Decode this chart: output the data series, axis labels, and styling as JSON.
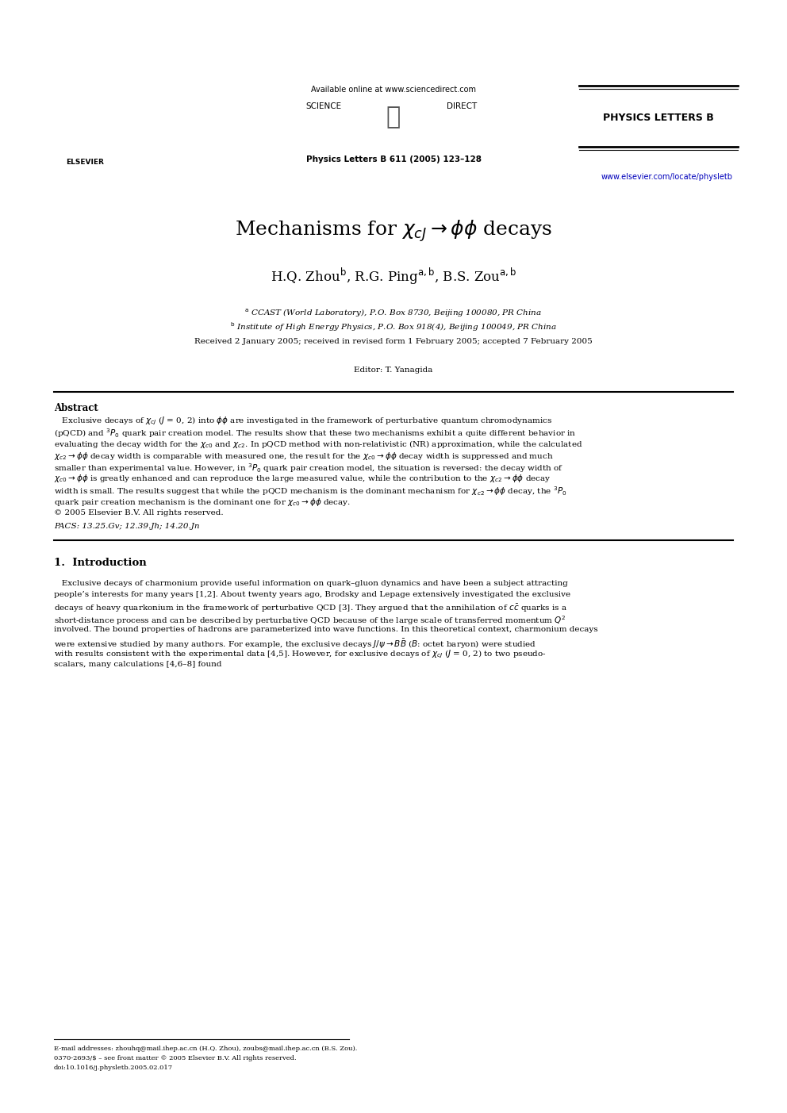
{
  "bg_color": "#ffffff",
  "page_width": 9.92,
  "page_height": 14.03,
  "header": {
    "available_online": "Available online at www.sciencedirect.com",
    "journal": "PHYSICS LETTERS B",
    "journal_info": "Physics Letters B 611 (2005) 123–128",
    "url": "www.elsevier.com/locate/physletb"
  },
  "title_latex": "Mechanisms for $\\chi_{cJ} \\rightarrow \\phi\\phi$ decays",
  "authors_latex": "H.Q. Zhou$^{\\mathrm{b}}$, R.G. Ping$^{\\mathrm{a,b}}$, B.S. Zou$^{\\mathrm{a,b}}$",
  "affil_a": "$^{\\mathrm{a}}$ CCAST (World Laboratory), P.O. Box 8730, Beijing 100080, PR China",
  "affil_b": "$^{\\mathrm{b}}$ Institute of High Energy Physics, P.O. Box 918(4), Beijing 100049, PR China",
  "received": "Received 2 January 2005; received in revised form 1 February 2005; accepted 7 February 2005",
  "editor": "Editor: T. Yanagida",
  "abstract_title": "Abstract",
  "abstract_line1": "   Exclusive decays of $\\chi_{cJ}$ ($J$ = 0, 2) into $\\phi\\phi$ are investigated in the framework of perturbative quantum chromodynamics",
  "abstract_line2": "(pQCD) and $^{3}P_{0}$ quark pair creation model. The results show that these two mechanisms exhibit a quite different behavior in",
  "abstract_line3": "evaluating the decay width for the $\\chi_{c0}$ and $\\chi_{c2}$. In pQCD method with non-relativistic (NR) approximation, while the calculated",
  "abstract_line4": "$\\chi_{c2} \\rightarrow \\phi\\phi$ decay width is comparable with measured one, the result for the $\\chi_{c0} \\rightarrow \\phi\\phi$ decay width is suppressed and much",
  "abstract_line5": "smaller than experimental value. However, in $^{3}P_{0}$ quark pair creation model, the situation is reversed: the decay width of",
  "abstract_line6": "$\\chi_{c0} \\rightarrow \\phi\\phi$ is greatly enhanced and can reproduce the large measured value, while the contribution to the $\\chi_{c2} \\rightarrow \\phi\\phi$ decay",
  "abstract_line7": "width is small. The results suggest that while the pQCD mechanism is the dominant mechanism for $\\chi_{c2} \\rightarrow \\phi\\phi$ decay, the $^{3}P_{0}$",
  "abstract_line8": "quark pair creation mechanism is the dominant one for $\\chi_{c0} \\rightarrow \\phi\\phi$ decay.",
  "copyright": "© 2005 Elsevier B.V. All rights reserved.",
  "pacs": "PACS: 13.25.Gv; 12.39.Jh; 14.20.Jn",
  "section1_title": "1.  Introduction",
  "intro_line1": "   Exclusive decays of charmonium provide useful information on quark–gluon dynamics and have been a subject attracting",
  "intro_line2": "people’s interests for many years [1,2]. About twenty years ago, Brodsky and Lepage extensively investigated the exclusive",
  "intro_line3": "decays of heavy quarkonium in the framework of perturbative QCD [3]. They argued that the annihilation of $c\\bar{c}$ quarks is a",
  "intro_line4": "short-distance process and can be described by perturbative QCD because of the large scale of transferred momentum $Q^{2}$",
  "intro_line5": "involved. The bound properties of hadrons are parameterized into wave functions. In this theoretical context, charmonium decays",
  "intro_line6": "were extensive studied by many authors. For example, the exclusive decays $J/\\psi \\rightarrow B\\bar{B}$ ($B$: octet baryon) were studied",
  "intro_line7": "with results consistent with the experimental data [4,5]. However, for exclusive decays of $\\chi_{cJ}$ ($J$ = 0, 2) to two pseudo-",
  "intro_line8": "scalars, many calculations [4,6–8] found",
  "footnote_email": "E-mail addresses: zhouhq@mail.ihep.ac.cn (H.Q. Zhou), zoubs@mail.ihep.ac.cn (B.S. Zou).",
  "footnote_issn": "0370-2693/$ – see front matter © 2005 Elsevier B.V. All rights reserved.",
  "footnote_doi": "doi:10.1016/j.physletb.2005.02.017"
}
